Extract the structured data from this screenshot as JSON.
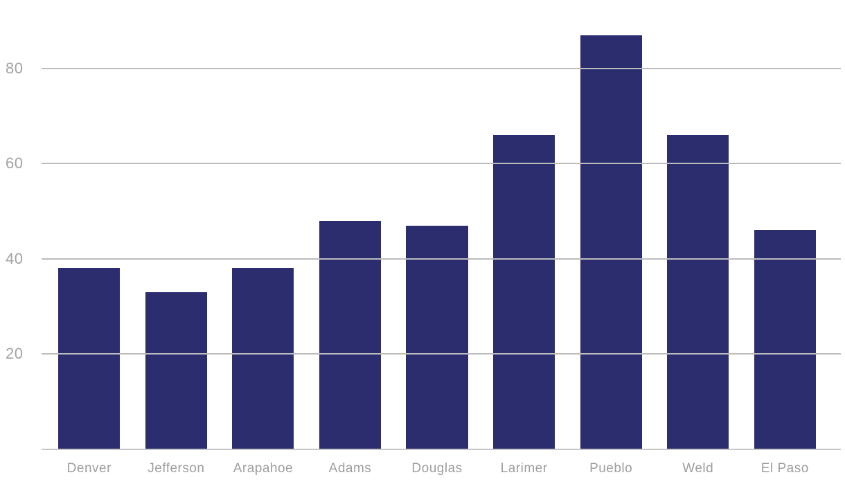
{
  "chart_data": {
    "type": "bar",
    "categories": [
      "Denver",
      "Jefferson",
      "Arapahoe",
      "Adams",
      "Douglas",
      "Larimer",
      "Pueblo",
      "Weld",
      "El Paso"
    ],
    "values": [
      38,
      33,
      38,
      48,
      47,
      66,
      87,
      66,
      46
    ],
    "title": "",
    "xlabel": "",
    "ylabel": "",
    "ylim": [
      0,
      93
    ],
    "yticks": [
      20,
      40,
      60,
      80
    ],
    "grid": true,
    "legend": false,
    "bar_color": "#2b2d6f",
    "gridline_color": "#bcbcbc",
    "axis_line_color": "#c7c7c7",
    "tick_label_color": "#a3a3a3"
  }
}
